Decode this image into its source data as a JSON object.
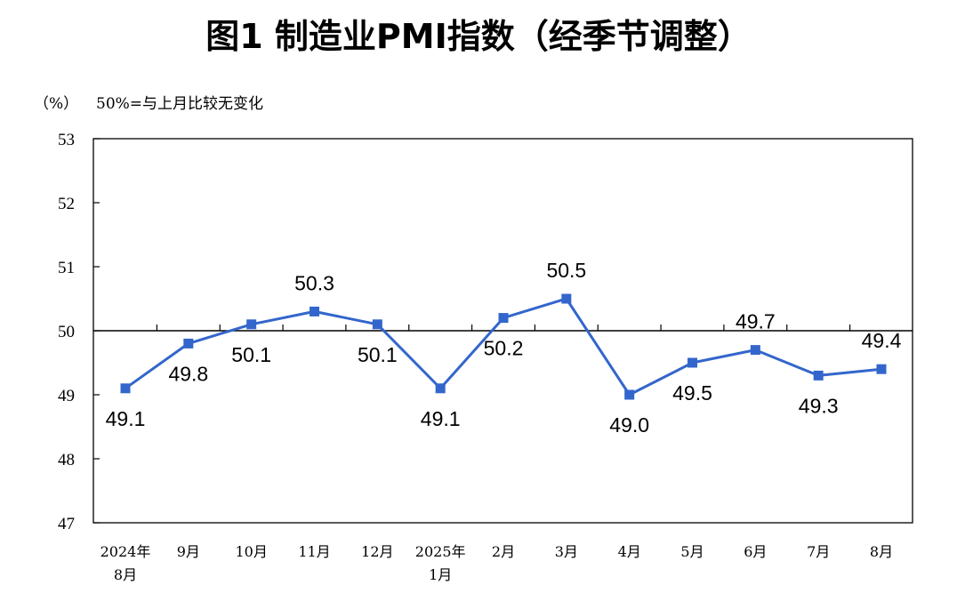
{
  "chart_data": {
    "type": "line",
    "title": "图1  制造业PMI指数（经季节调整）",
    "unit_label": "（%）",
    "note": "50%=与上月比较无变化",
    "ylim": [
      47,
      53
    ],
    "yticks": [
      "53",
      "52",
      "51",
      "50",
      "49",
      "48",
      "47"
    ],
    "reference_line": 50,
    "categories": [
      {
        "line1": "2024年",
        "line2": "8月"
      },
      {
        "line1": "9月",
        "line2": ""
      },
      {
        "line1": "10月",
        "line2": ""
      },
      {
        "line1": "11月",
        "line2": ""
      },
      {
        "line1": "12月",
        "line2": ""
      },
      {
        "line1": "2025年",
        "line2": "1月"
      },
      {
        "line1": "2月",
        "line2": ""
      },
      {
        "line1": "3月",
        "line2": ""
      },
      {
        "line1": "4月",
        "line2": ""
      },
      {
        "line1": "5月",
        "line2": ""
      },
      {
        "line1": "6月",
        "line2": ""
      },
      {
        "line1": "7月",
        "line2": ""
      },
      {
        "line1": "8月",
        "line2": ""
      }
    ],
    "values": [
      49.1,
      49.8,
      50.1,
      50.3,
      50.1,
      49.1,
      50.2,
      50.5,
      49.0,
      49.5,
      49.7,
      49.3,
      49.4
    ],
    "labels": [
      "49.1",
      "49.8",
      "50.1",
      "50.3",
      "50.1",
      "49.1",
      "50.2",
      "50.5",
      "49.0",
      "49.5",
      "49.7",
      "49.3",
      "49.4"
    ],
    "line_color": "#3366CC",
    "grid": false,
    "legend": "none"
  }
}
